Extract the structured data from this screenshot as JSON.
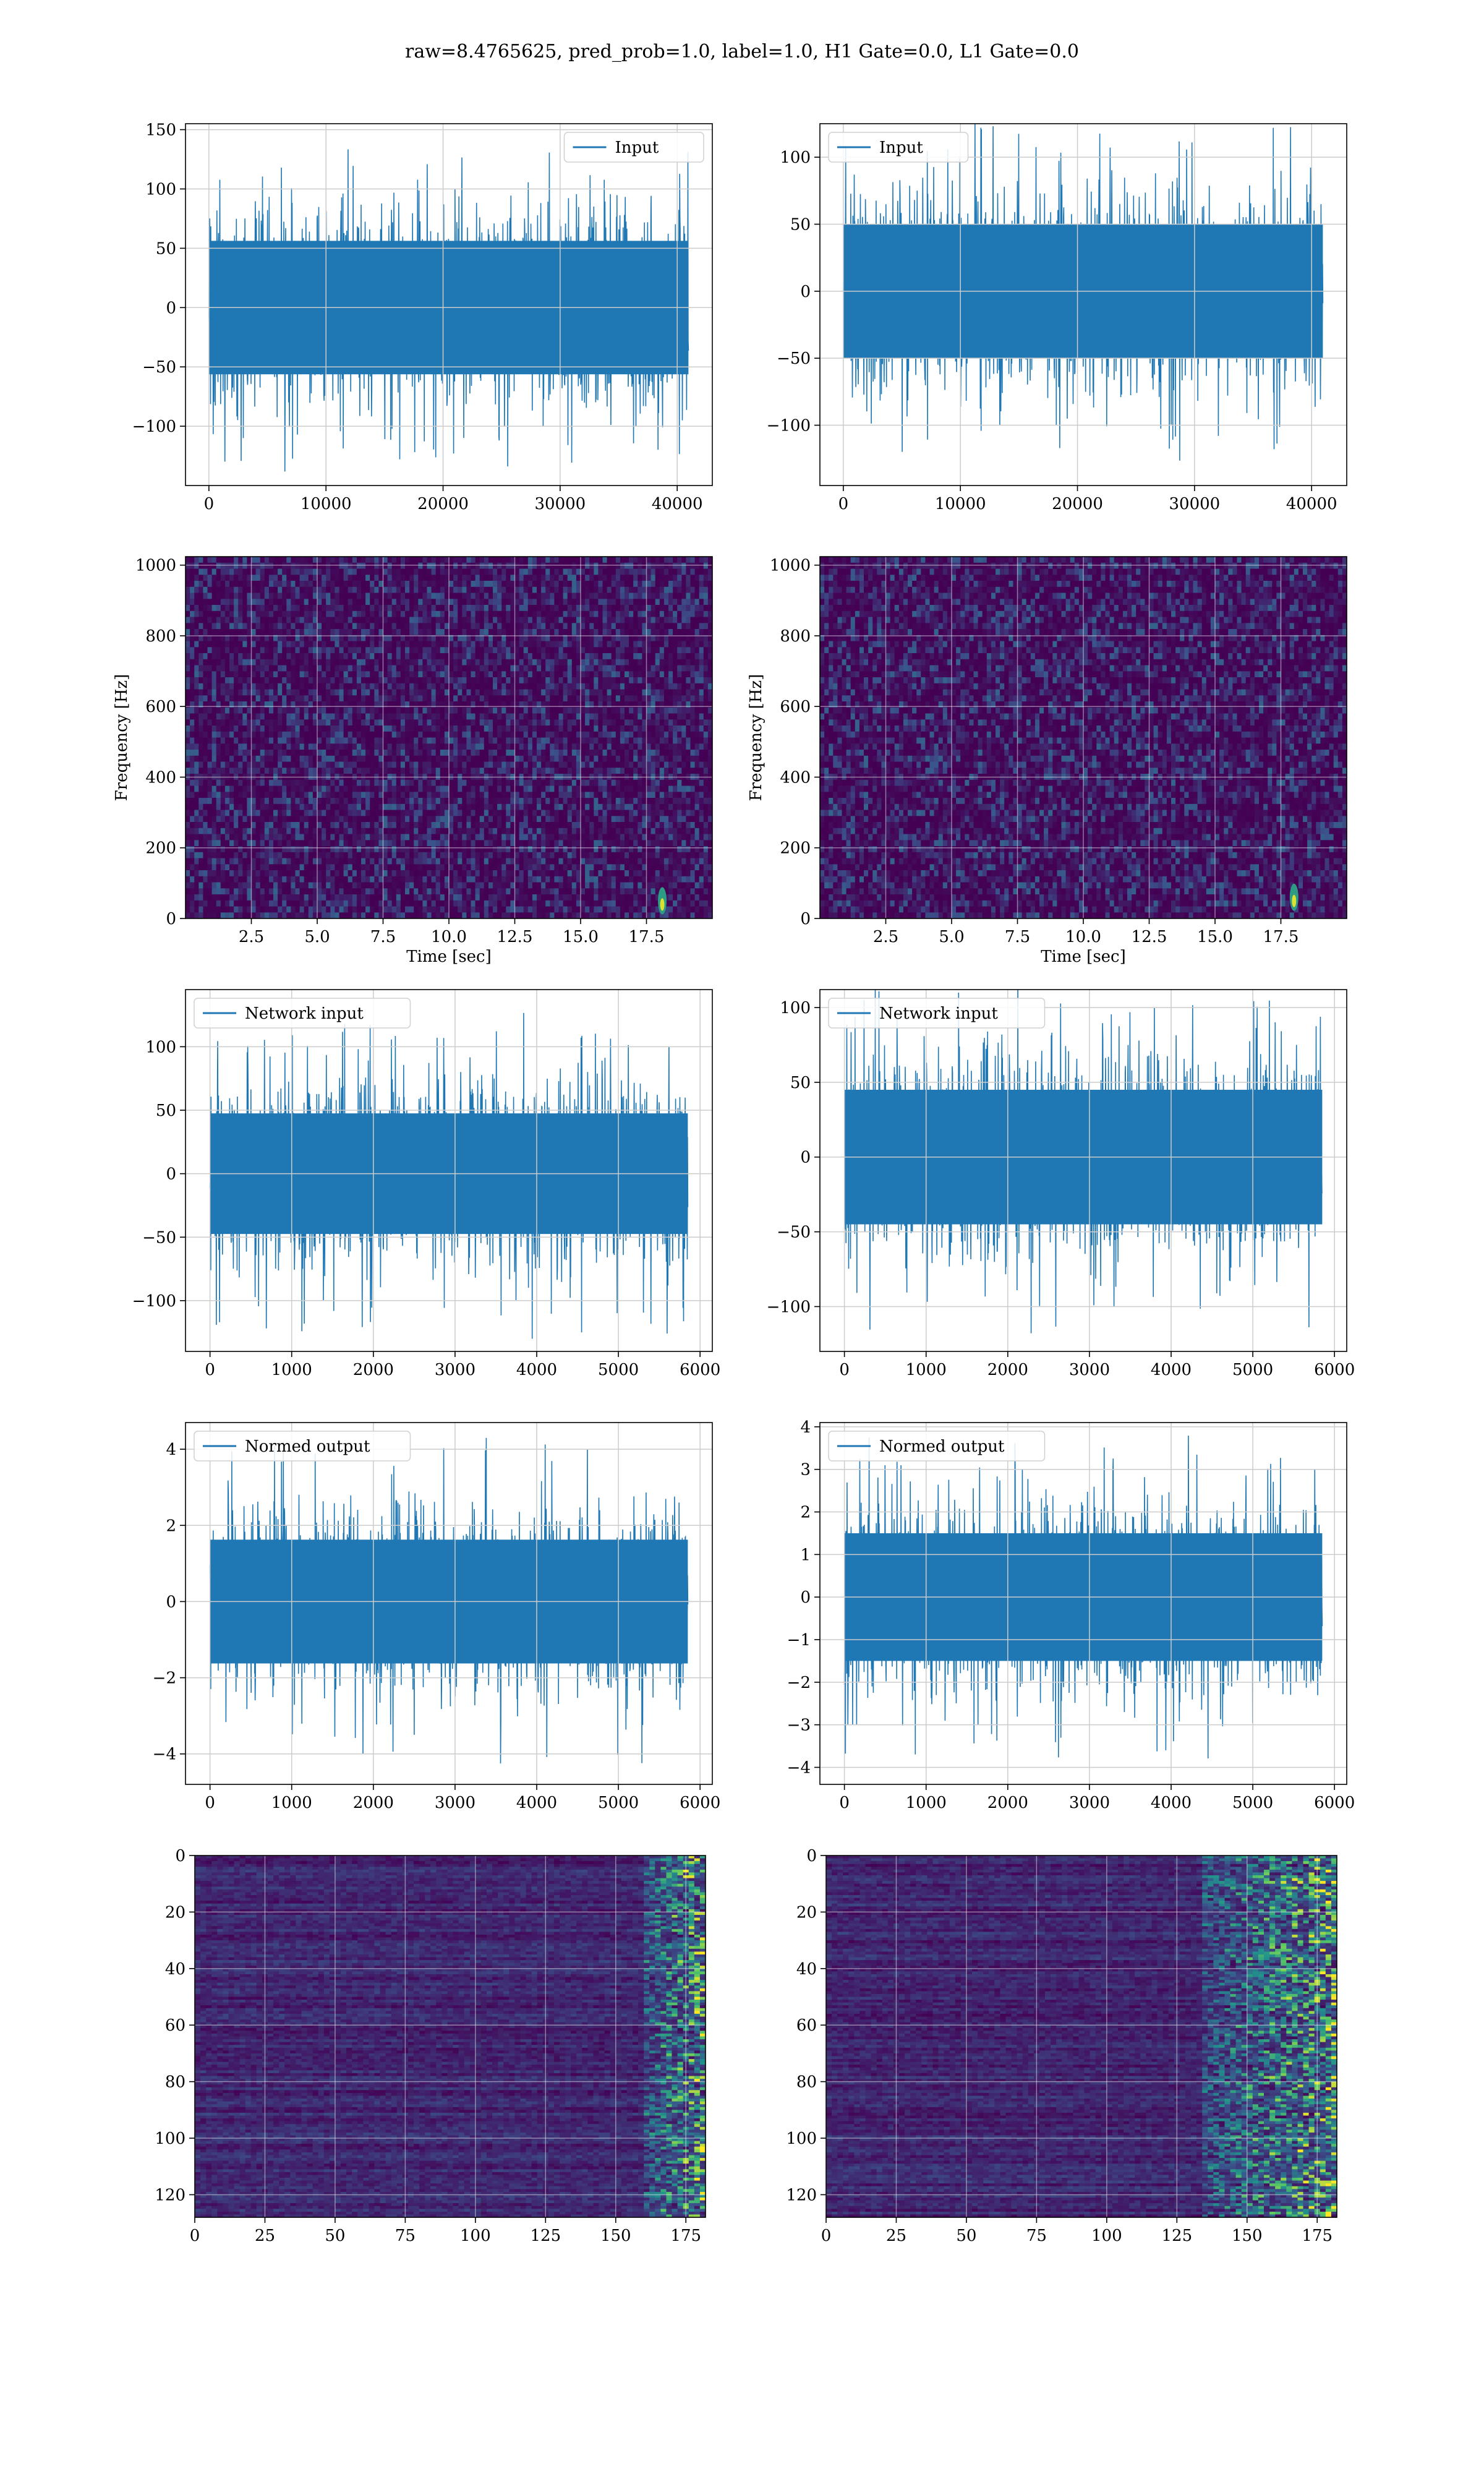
{
  "figure_title": "raw=8.4765625, pred_prob=1.0, label=1.0, H1 Gate=0.0, L1 Gate=0.0",
  "colors": {
    "line": "#1f77b4",
    "grid": "#cccccc",
    "viridis_low": "#440154",
    "viridis_mid": "#21918c",
    "viridis_high": "#fde725"
  },
  "chart_data": [
    {
      "id": "input-h1",
      "type": "line",
      "series": [
        {
          "name": "Input",
          "x_range": [
            0,
            40960
          ],
          "amplitude": 45,
          "peak": 140
        }
      ],
      "xlim": [
        -2000,
        43000
      ],
      "ylim": [
        -150,
        155
      ],
      "xticks": [
        0,
        10000,
        20000,
        30000,
        40000
      ],
      "xtick_labels": [
        "0",
        "10000",
        "20000",
        "30000",
        "40000"
      ],
      "yticks": [
        -100,
        -50,
        0,
        50,
        100,
        150
      ],
      "ytick_labels": [
        "−100",
        "−50",
        "0",
        "50",
        "100",
        "150"
      ],
      "legend": "top-right",
      "grid": true
    },
    {
      "id": "input-l1",
      "type": "line",
      "series": [
        {
          "name": "Input",
          "x_range": [
            0,
            40960
          ],
          "amplitude": 40,
          "peak": 128
        }
      ],
      "xlim": [
        -2000,
        43000
      ],
      "ylim": [
        -145,
        125
      ],
      "xticks": [
        0,
        10000,
        20000,
        30000,
        40000
      ],
      "xtick_labels": [
        "0",
        "10000",
        "20000",
        "30000",
        "40000"
      ],
      "yticks": [
        -100,
        -50,
        0,
        50,
        100
      ],
      "ytick_labels": [
        "−100",
        "−50",
        "0",
        "50",
        "100"
      ],
      "legend": "top-left",
      "grid": true
    },
    {
      "id": "spectrogram-h1",
      "type": "heatmap",
      "xlim": [
        0,
        20
      ],
      "ylim": [
        0,
        1024
      ],
      "xticks": [
        2.5,
        5.0,
        7.5,
        10.0,
        12.5,
        15.0,
        17.5
      ],
      "xtick_labels": [
        "2.5",
        "5.0",
        "7.5",
        "10.0",
        "12.5",
        "15.0",
        "17.5"
      ],
      "yticks": [
        0,
        200,
        400,
        600,
        800,
        1000
      ],
      "ytick_labels": [
        "0",
        "200",
        "400",
        "600",
        "800",
        "1000"
      ],
      "xlabel": "Time [sec]",
      "ylabel": "Frequency [Hz]",
      "hotspot": {
        "x": 18.1,
        "y": 50
      },
      "grid": true
    },
    {
      "id": "spectrogram-l1",
      "type": "heatmap",
      "xlim": [
        0,
        20
      ],
      "ylim": [
        0,
        1024
      ],
      "xticks": [
        2.5,
        5.0,
        7.5,
        10.0,
        12.5,
        15.0,
        17.5
      ],
      "xtick_labels": [
        "2.5",
        "5.0",
        "7.5",
        "10.0",
        "12.5",
        "15.0",
        "17.5"
      ],
      "yticks": [
        0,
        200,
        400,
        600,
        800,
        1000
      ],
      "ytick_labels": [
        "0",
        "200",
        "400",
        "600",
        "800",
        "1000"
      ],
      "xlabel": "Time [sec]",
      "ylabel": "Frequency [Hz]",
      "hotspot": {
        "x": 18.0,
        "y": 60
      },
      "grid": true
    },
    {
      "id": "network-input-h1",
      "type": "line",
      "series": [
        {
          "name": "Network input",
          "x_range": [
            0,
            5850
          ],
          "amplitude": 38,
          "peak": 130
        }
      ],
      "xlim": [
        -300,
        6150
      ],
      "ylim": [
        -140,
        145
      ],
      "xticks": [
        0,
        1000,
        2000,
        3000,
        4000,
        5000,
        6000
      ],
      "xtick_labels": [
        "0",
        "1000",
        "2000",
        "3000",
        "4000",
        "5000",
        "6000"
      ],
      "yticks": [
        -100,
        -50,
        0,
        50,
        100
      ],
      "ytick_labels": [
        "−100",
        "−50",
        "0",
        "50",
        "100"
      ],
      "legend": "top-left",
      "grid": true
    },
    {
      "id": "network-input-l1",
      "type": "line",
      "series": [
        {
          "name": "Network input",
          "x_range": [
            0,
            5850
          ],
          "amplitude": 36,
          "peak": 118
        }
      ],
      "xlim": [
        -300,
        6150
      ],
      "ylim": [
        -130,
        112
      ],
      "xticks": [
        0,
        1000,
        2000,
        3000,
        4000,
        5000,
        6000
      ],
      "xtick_labels": [
        "0",
        "1000",
        "2000",
        "3000",
        "4000",
        "5000",
        "6000"
      ],
      "yticks": [
        -100,
        -50,
        0,
        50,
        100
      ],
      "ytick_labels": [
        "−100",
        "−50",
        "0",
        "50",
        "100"
      ],
      "legend": "top-left",
      "grid": true
    },
    {
      "id": "normed-output-h1",
      "type": "line",
      "series": [
        {
          "name": "Normed output",
          "x_range": [
            0,
            5850
          ],
          "amplitude": 1.3,
          "peak": 4.3
        }
      ],
      "xlim": [
        -300,
        6150
      ],
      "ylim": [
        -4.8,
        4.7
      ],
      "xticks": [
        0,
        1000,
        2000,
        3000,
        4000,
        5000,
        6000
      ],
      "xtick_labels": [
        "0",
        "1000",
        "2000",
        "3000",
        "4000",
        "5000",
        "6000"
      ],
      "yticks": [
        -4,
        -2,
        0,
        2,
        4
      ],
      "ytick_labels": [
        "−4",
        "−2",
        "0",
        "2",
        "4"
      ],
      "legend": "top-left",
      "grid": true
    },
    {
      "id": "normed-output-l1",
      "type": "line",
      "series": [
        {
          "name": "Normed output",
          "x_range": [
            0,
            5850
          ],
          "amplitude": 1.2,
          "peak": 3.8
        }
      ],
      "xlim": [
        -300,
        6150
      ],
      "ylim": [
        -4.4,
        4.1
      ],
      "xticks": [
        0,
        1000,
        2000,
        3000,
        4000,
        5000,
        6000
      ],
      "xtick_labels": [
        "0",
        "1000",
        "2000",
        "3000",
        "4000",
        "5000",
        "6000"
      ],
      "yticks": [
        -4,
        -3,
        -2,
        -1,
        0,
        1,
        2,
        3,
        4
      ],
      "ytick_labels": [
        "−4",
        "−3",
        "−2",
        "−1",
        "0",
        "1",
        "2",
        "3",
        "4"
      ],
      "legend": "top-left",
      "grid": true
    },
    {
      "id": "feature-map-h1",
      "type": "heatmap",
      "xlim": [
        0,
        182
      ],
      "ylim": [
        128,
        0
      ],
      "xticks": [
        0,
        25,
        50,
        75,
        100,
        125,
        150,
        175
      ],
      "xtick_labels": [
        "0",
        "25",
        "50",
        "75",
        "100",
        "125",
        "150",
        "175"
      ],
      "yticks": [
        0,
        20,
        40,
        60,
        80,
        100,
        120
      ],
      "ytick_labels": [
        "0",
        "20",
        "40",
        "60",
        "80",
        "100",
        "120"
      ],
      "hot_region_x": [
        160,
        182
      ],
      "grid": true
    },
    {
      "id": "feature-map-l1",
      "type": "heatmap",
      "xlim": [
        0,
        182
      ],
      "ylim": [
        128,
        0
      ],
      "xticks": [
        0,
        25,
        50,
        75,
        100,
        125,
        150,
        175
      ],
      "xtick_labels": [
        "0",
        "25",
        "50",
        "75",
        "100",
        "125",
        "150",
        "175"
      ],
      "yticks": [
        0,
        20,
        40,
        60,
        80,
        100,
        120
      ],
      "ytick_labels": [
        "0",
        "20",
        "40",
        "60",
        "80",
        "100",
        "120"
      ],
      "hot_region_x": [
        135,
        182
      ],
      "grid": true
    }
  ]
}
